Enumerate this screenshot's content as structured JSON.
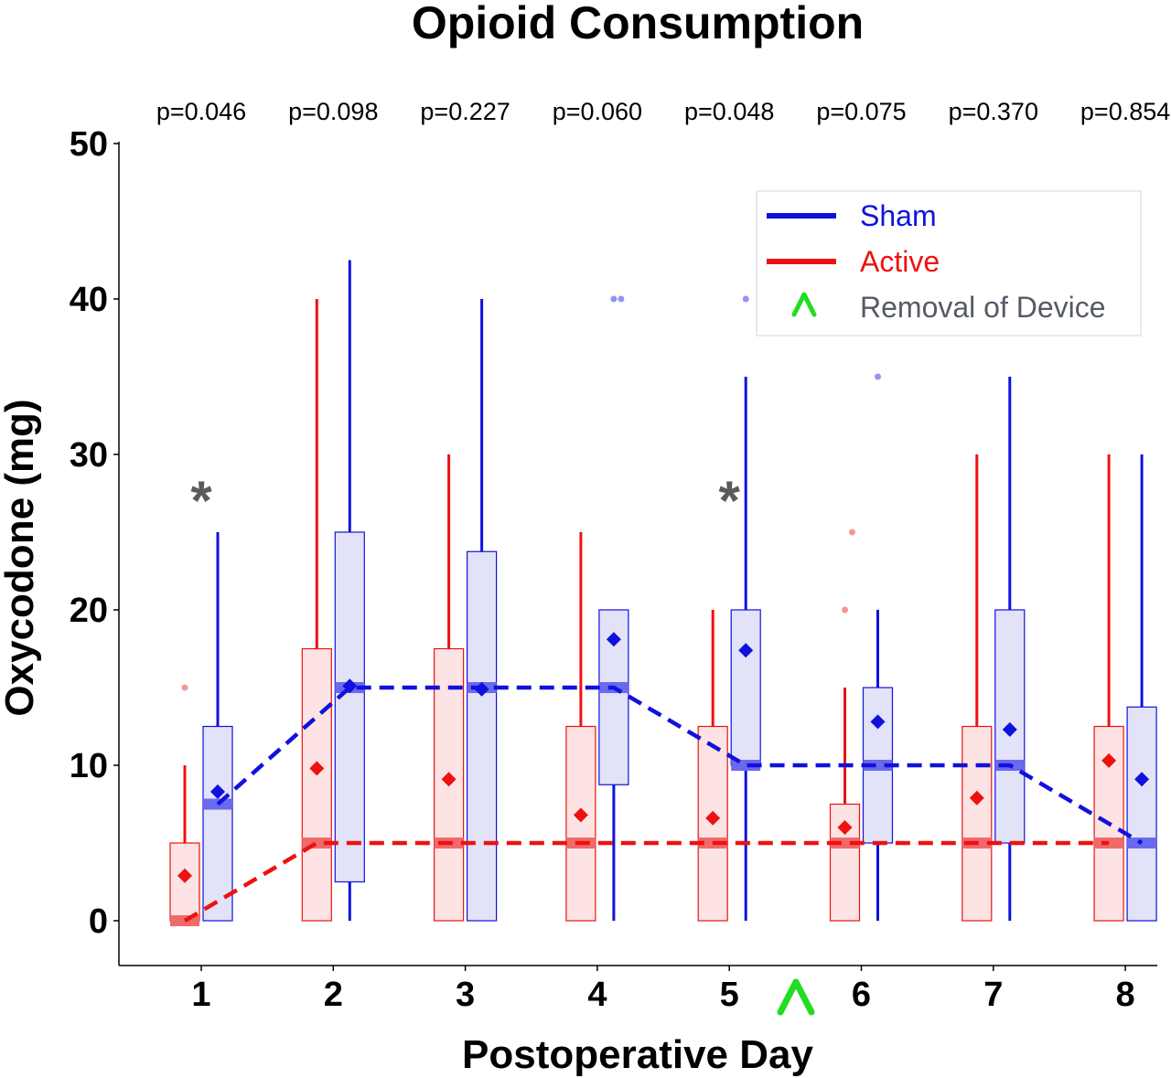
{
  "chart_data": {
    "type": "box",
    "title": "Opioid Consumption",
    "xlabel": "Postoperative Day",
    "ylabel": "Oxycodone (mg)",
    "ylim": [
      -3,
      50
    ],
    "yticks": [
      0,
      10,
      20,
      30,
      40,
      50
    ],
    "categories": [
      "1",
      "2",
      "3",
      "4",
      "5",
      "6",
      "7",
      "8"
    ],
    "p_values": [
      "p=0.046",
      "p=0.098",
      "p=0.227",
      "p=0.060",
      "p=0.048",
      "p=0.075",
      "p=0.370",
      "p=0.854"
    ],
    "significance_marks": [
      {
        "day": 1,
        "label": "*"
      },
      {
        "day": 5,
        "label": "*"
      }
    ],
    "device_removal": {
      "between_days": [
        5,
        6
      ],
      "label": "^",
      "color": "#22dd22"
    },
    "legend": {
      "position": "top-right",
      "entries": [
        {
          "label": "Sham",
          "color": "#1111dd",
          "kind": "line"
        },
        {
          "label": "Active",
          "color": "#ee1111",
          "kind": "line"
        },
        {
          "label": "Removal of Device",
          "color": "#555a66",
          "kind": "marker",
          "marker": "^",
          "marker_color": "#22dd22"
        }
      ]
    },
    "series": [
      {
        "name": "Sham",
        "color": "#1111dd",
        "fill": "#e2e2f8",
        "median_color": "#6a6aee",
        "boxes": [
          {
            "q1": 0,
            "median": 7.5,
            "q3": 12.5,
            "wlo": 0,
            "whi": 25,
            "mean": 8.3,
            "outliers": []
          },
          {
            "q1": 2.5,
            "median": 15,
            "q3": 25,
            "wlo": 0,
            "whi": 42.5,
            "mean": 15.1,
            "outliers": []
          },
          {
            "q1": 0,
            "median": 15,
            "q3": 23.75,
            "wlo": 0,
            "whi": 40,
            "mean": 14.9,
            "outliers": []
          },
          {
            "q1": 8.75,
            "median": 15,
            "q3": 20,
            "wlo": 0,
            "whi": 20,
            "mean": 18.1,
            "outliers": [
              40,
              40
            ]
          },
          {
            "q1": 10,
            "median": 10,
            "q3": 20,
            "wlo": 0,
            "whi": 35,
            "mean": 17.4,
            "outliers": [
              40
            ]
          },
          {
            "q1": 5,
            "median": 10,
            "q3": 15,
            "wlo": 0,
            "whi": 20,
            "mean": 12.8,
            "outliers": [
              35
            ]
          },
          {
            "q1": 5,
            "median": 10,
            "q3": 20,
            "wlo": 0,
            "whi": 35,
            "mean": 12.3,
            "outliers": []
          },
          {
            "q1": 0,
            "median": 5,
            "q3": 13.75,
            "wlo": 0,
            "whi": 30,
            "mean": 9.1,
            "outliers": []
          }
        ]
      },
      {
        "name": "Active",
        "color": "#ee1111",
        "fill": "#fde3e3",
        "median_color": "#f06a6a",
        "boxes": [
          {
            "q1": 0,
            "median": 0,
            "q3": 5,
            "wlo": 0,
            "whi": 10,
            "mean": 2.9,
            "outliers": [
              15
            ]
          },
          {
            "q1": 0,
            "median": 5,
            "q3": 17.5,
            "wlo": 0,
            "whi": 40,
            "mean": 9.8,
            "outliers": []
          },
          {
            "q1": 0,
            "median": 5,
            "q3": 17.5,
            "wlo": 0,
            "whi": 30,
            "mean": 9.1,
            "outliers": []
          },
          {
            "q1": 0,
            "median": 5,
            "q3": 12.5,
            "wlo": 0,
            "whi": 25,
            "mean": 6.8,
            "outliers": []
          },
          {
            "q1": 0,
            "median": 5,
            "q3": 12.5,
            "wlo": 0,
            "whi": 20,
            "mean": 6.6,
            "outliers": []
          },
          {
            "q1": 0,
            "median": 5,
            "q3": 7.5,
            "wlo": 0,
            "whi": 15,
            "mean": 6.0,
            "outliers": [
              20,
              25
            ]
          },
          {
            "q1": 0,
            "median": 5,
            "q3": 12.5,
            "wlo": 0,
            "whi": 30,
            "mean": 7.9,
            "outliers": []
          },
          {
            "q1": 0,
            "median": 5,
            "q3": 12.5,
            "wlo": 0,
            "whi": 30,
            "mean": 10.3,
            "outliers": []
          }
        ]
      }
    ]
  }
}
